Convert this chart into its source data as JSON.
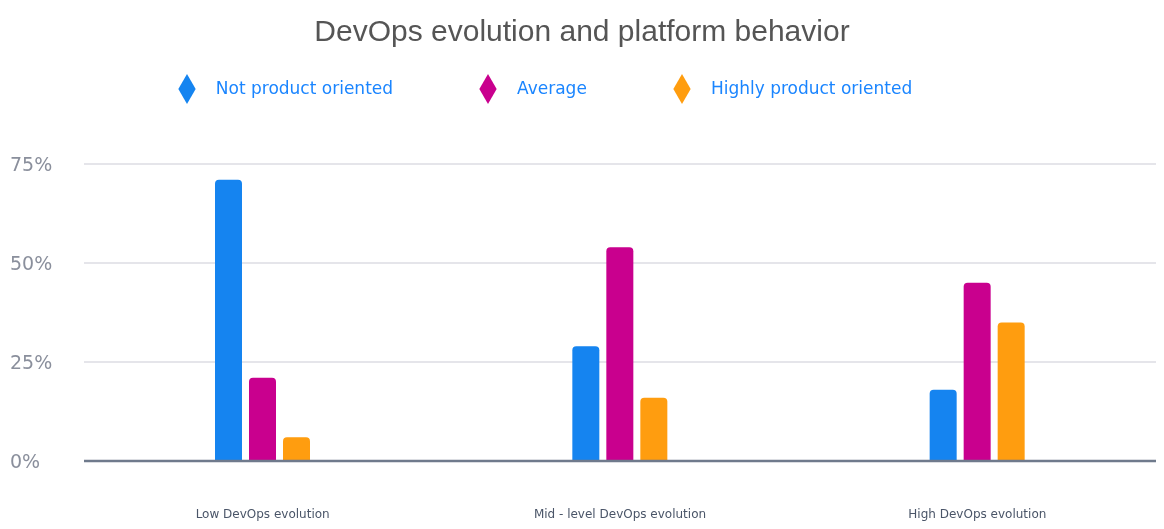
{
  "chart_data": {
    "type": "bar",
    "title": "DevOps evolution and platform behavior",
    "categories": [
      "Low DevOps evolution",
      "Mid - level DevOps evolution",
      "High DevOps evolution"
    ],
    "series": [
      {
        "name": "Not product oriented",
        "color": "#1584f0",
        "values": [
          71,
          29,
          18
        ]
      },
      {
        "name": "Average",
        "color": "#c9008e",
        "values": [
          21,
          54,
          45
        ]
      },
      {
        "name": "Highly product oriented",
        "color": "#ff9d0f",
        "values": [
          6,
          16,
          35
        ]
      }
    ],
    "ylim": [
      0,
      75
    ],
    "yticks": [
      {
        "value": 0,
        "label": "0%"
      },
      {
        "value": 25,
        "label": "25%"
      },
      {
        "value": 50,
        "label": "50%"
      },
      {
        "value": 75,
        "label": "75%"
      }
    ],
    "grid": "y",
    "legend": "top"
  }
}
